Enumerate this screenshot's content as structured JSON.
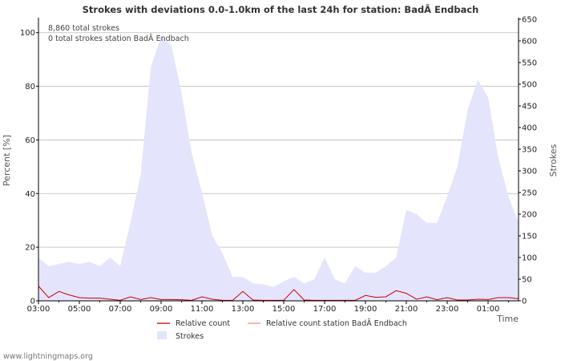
{
  "chart_data": {
    "type": "area",
    "title": "Strokes with deviations 0.0-1.0km of the last 24h for station: BadÃ Endbach",
    "xlabel": "Time",
    "ylabel_left": "Percent   [%]",
    "ylabel_right": "Strokes",
    "x_tick_labels": [
      "03:00",
      "05:00",
      "07:00",
      "09:00",
      "11:00",
      "13:00",
      "15:00",
      "17:00",
      "19:00",
      "21:00",
      "23:00",
      "01:00"
    ],
    "y_left_ticks": [
      0,
      20,
      40,
      60,
      80,
      100
    ],
    "y_left_lim": [
      0,
      105
    ],
    "y_right_ticks": [
      0,
      50,
      100,
      150,
      200,
      250,
      300,
      350,
      400,
      450,
      500,
      550,
      600,
      650
    ],
    "y_right_lim": [
      0,
      650
    ],
    "annotations": [
      "8,860 total strokes",
      "0 total strokes station BadÃ Endbach"
    ],
    "x_hours": [
      0,
      0.5,
      1,
      1.5,
      2,
      2.5,
      3,
      3.5,
      4,
      4.5,
      5,
      5.5,
      6,
      6.5,
      7,
      7.5,
      8,
      8.5,
      9,
      9.5,
      10,
      10.5,
      11,
      11.5,
      12,
      12.5,
      13,
      13.5,
      14,
      14.5,
      15,
      15.5,
      16,
      16.5,
      17,
      17.5,
      18,
      18.5,
      19,
      19.5,
      20,
      20.5,
      21,
      21.5,
      22,
      22.5,
      23,
      23.5
    ],
    "series": [
      {
        "name": "Strokes",
        "axis": "right",
        "type": "area",
        "values": [
          100,
          80,
          85,
          90,
          85,
          90,
          80,
          100,
          80,
          180,
          290,
          540,
          610,
          590,
          480,
          340,
          250,
          150,
          110,
          55,
          55,
          40,
          38,
          32,
          45,
          55,
          40,
          50,
          100,
          50,
          40,
          80,
          65,
          65,
          80,
          100,
          210,
          200,
          180,
          180,
          240,
          310,
          440,
          510,
          470,
          330,
          240,
          180
        ]
      },
      {
        "name": "Relative count",
        "axis": "left",
        "type": "line",
        "values": [
          5.5,
          1.2,
          3.5,
          2.2,
          1.2,
          1.0,
          1.0,
          0.6,
          0.2,
          1.5,
          0.5,
          1.2,
          0.5,
          0.5,
          0.4,
          0.2,
          1.5,
          0.6,
          0.2,
          0.2,
          3.5,
          0.3,
          0.2,
          0.2,
          0.2,
          4.2,
          0.3,
          0.2,
          0.2,
          0.2,
          0.2,
          0.2,
          2.0,
          1.3,
          1.5,
          3.8,
          2.8,
          0.6,
          1.5,
          0.4,
          1.2,
          0.3,
          0.3,
          0.6,
          0.5,
          1.2,
          1.2,
          0.8
        ]
      },
      {
        "name": "Relative count station BadÃ Endbach",
        "axis": "left",
        "type": "line",
        "values": [
          0,
          0,
          0,
          0,
          0,
          0,
          0,
          0,
          0,
          0,
          0,
          0,
          0,
          0,
          0,
          0,
          0,
          0,
          0,
          0,
          0,
          0,
          0,
          0,
          0,
          0,
          0,
          0,
          0,
          0,
          0,
          0,
          0,
          0,
          0,
          0,
          0,
          0,
          0,
          0,
          0,
          0,
          0,
          0,
          0,
          0,
          0,
          0
        ]
      }
    ],
    "legend": {
      "placement": "bottom",
      "items": [
        {
          "label": "Relative count",
          "symbol": "line",
          "color": "#cc0000"
        },
        {
          "label": "Relative count station BadÃ Endbach",
          "symbol": "line",
          "color": "#ff8888"
        },
        {
          "label": "Strokes",
          "symbol": "box",
          "color": "#e4e4fc"
        }
      ]
    },
    "colors": {
      "strokes_fill": "#e4e4fc",
      "relative_count": "#cc0000",
      "relative_count_station": "#ff8888",
      "grid": "#bbbbbb",
      "axis": "#000000"
    }
  },
  "footer": "www.lightningmaps.org"
}
